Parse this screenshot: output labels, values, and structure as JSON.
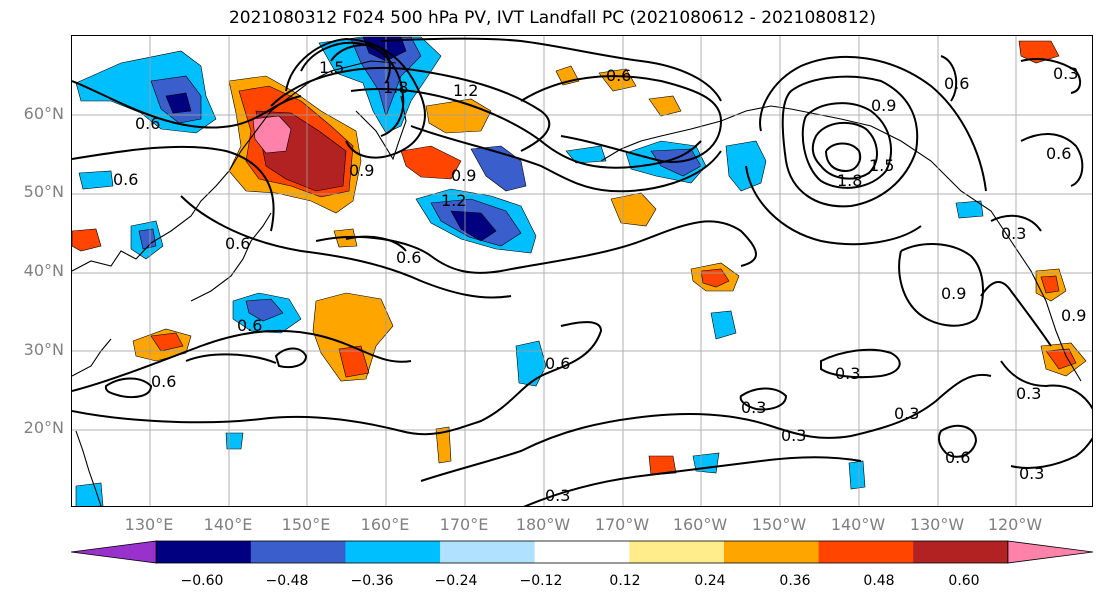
{
  "title": "2021080312 F024 500 hPa PV, IVT Landfall PC (2021080612 - 2021080812)",
  "lat_labels": [
    "60°N",
    "50°N",
    "40°N",
    "30°N",
    "20°N"
  ],
  "lon_labels": [
    "130°E",
    "140°E",
    "150°E",
    "160°E",
    "170°E",
    "180°W",
    "170°W",
    "160°W",
    "150°W",
    "140°W",
    "130°W",
    "120°W"
  ],
  "contour_labels": [
    "0.6",
    "0.9",
    "1.5",
    "1.8",
    "1.2",
    "0.9",
    "0.6",
    "1.2",
    "0.9",
    "1.5",
    "1.8",
    "0.6",
    "0.6",
    "0.3",
    "0.9",
    "0.6",
    "0.6",
    "0.6",
    "0.6",
    "0.6",
    "0.3",
    "0.3",
    "0.3",
    "0.3",
    "0.3",
    "0.6",
    "0.3",
    "0.3",
    "0.3",
    "0.6",
    "0.9"
  ],
  "colorbar": {
    "ticks": [
      "−0.60",
      "−0.48",
      "−0.36",
      "−0.24",
      "−0.12",
      "0.12",
      "0.24",
      "0.36",
      "0.48",
      "0.60"
    ],
    "colors": [
      "#9932cc",
      "#000080",
      "#3a5fcd",
      "#00bfff",
      "#b0e2ff",
      "#ffffff",
      "#ffec8b",
      "#ffa500",
      "#ff4500",
      "#b22222",
      "#ff82ab"
    ]
  }
}
